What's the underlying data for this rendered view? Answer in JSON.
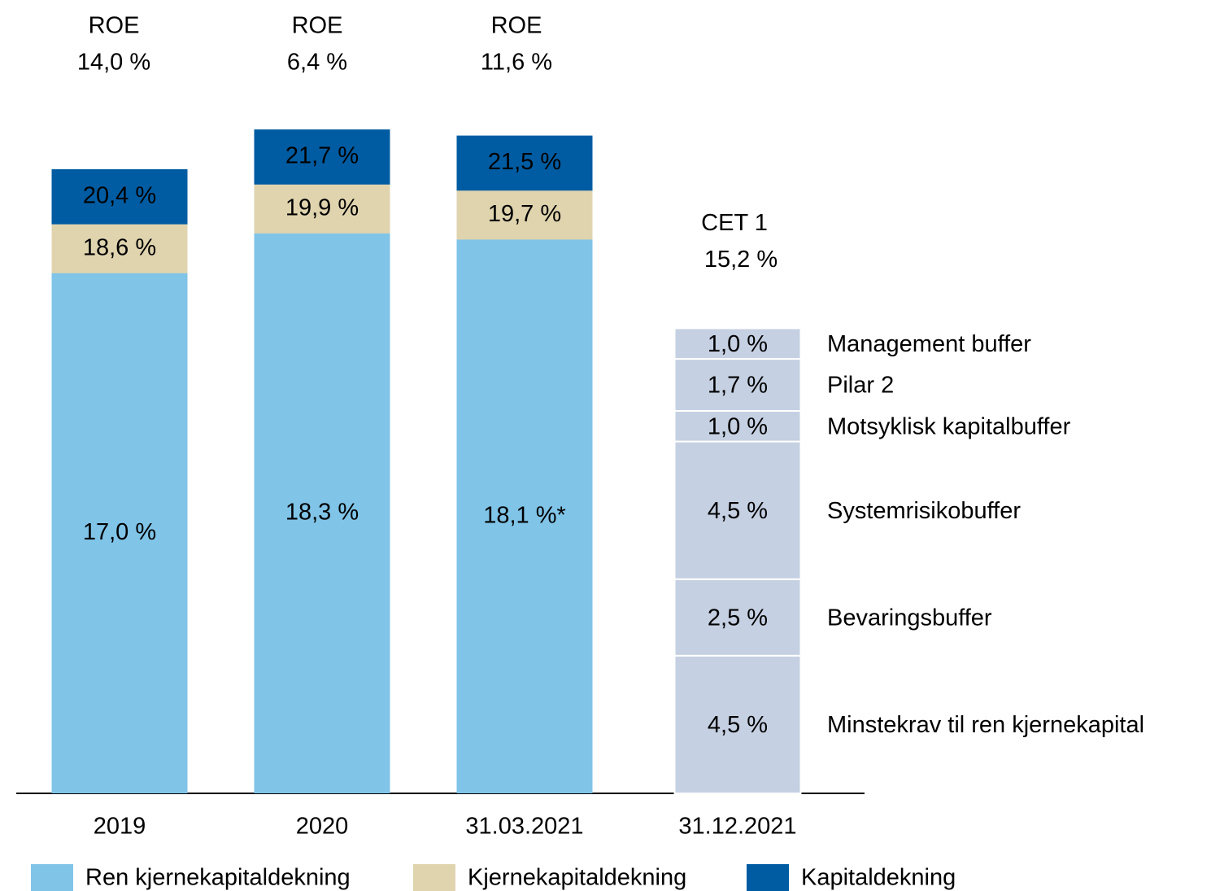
{
  "chart_data": {
    "type": "bar",
    "categories": [
      "2019",
      "2020",
      "31.03.2021",
      "31.12.2021"
    ],
    "series": [
      {
        "name": "Ren kjernekapitaldekning",
        "color": "#80c4e8",
        "values": [
          17.0,
          18.3,
          18.1,
          null
        ],
        "value_labels": [
          "17,0 %",
          "18,3 %",
          "18,1 %*",
          null
        ]
      },
      {
        "name": "Kjernekapitaldekning",
        "color": "#e0d4af",
        "values": [
          18.6,
          19.9,
          19.7,
          null
        ],
        "value_labels": [
          "18,6 %",
          "19,9 %",
          "19,7 %",
          null
        ]
      },
      {
        "name": "Kapitaldekning",
        "color": "#005ca2",
        "values": [
          20.4,
          21.7,
          21.5,
          null
        ],
        "value_labels": [
          "20,4 %",
          "21,7 %",
          "21,5 %",
          null
        ]
      }
    ],
    "roe_label": "ROE",
    "roe": [
      14.0,
      6.4,
      11.6
    ],
    "roe_labels": [
      "14,0 %",
      "6,4 %",
      "11,6 %"
    ],
    "requirements": {
      "label": "CET 1",
      "total": 15.2,
      "total_label": "15,2 %",
      "color": "#c5d0e2",
      "segments": [
        {
          "name": "Minstekrav til ren kjernekapital",
          "value": 4.5,
          "value_label": "4,5 %"
        },
        {
          "name": "Bevaringsbuffer",
          "value": 2.5,
          "value_label": "2,5 %"
        },
        {
          "name": "Systemrisikobuffer",
          "value": 4.5,
          "value_label": "4,5 %"
        },
        {
          "name": "Motsyklisk kapitalbuffer",
          "value": 1.0,
          "value_label": "1,0 %"
        },
        {
          "name": "Pilar 2",
          "value": 1.7,
          "value_label": "1,7 %"
        },
        {
          "name": "Management buffer",
          "value": 1.0,
          "value_label": "1,0 %"
        }
      ]
    },
    "ylim": [
      0,
      23
    ],
    "legend": "bottom"
  }
}
